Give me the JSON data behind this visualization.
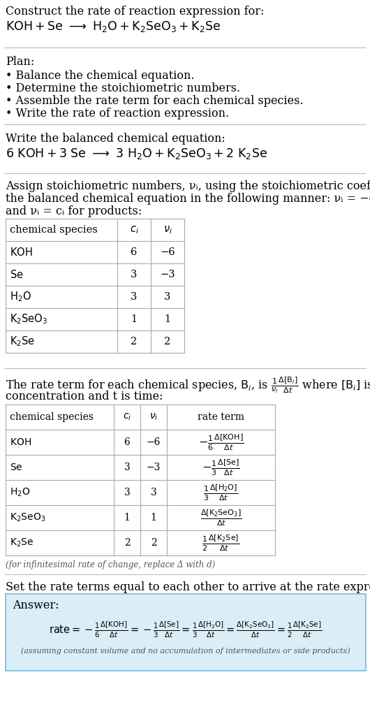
{
  "title_line1": "Construct the rate of reaction expression for:",
  "plan_header": "Plan:",
  "plan_items": [
    "• Balance the chemical equation.",
    "• Determine the stoichiometric numbers.",
    "• Assemble the rate term for each chemical species.",
    "• Write the rate of reaction expression."
  ],
  "balanced_header": "Write the balanced chemical equation:",
  "assign_text1": "Assign stoichiometric numbers, νᵢ, using the stoichiometric coefficients, cᵢ, from",
  "assign_text2": "the balanced chemical equation in the following manner: νᵢ = −cᵢ for reactants",
  "assign_text3": "and νᵢ = cᵢ for products:",
  "table1_rows": [
    [
      "KOH",
      "6",
      "−6"
    ],
    [
      "Se",
      "3",
      "−3"
    ],
    [
      "H_2O",
      "3",
      "3"
    ],
    [
      "K_2SeO_3",
      "1",
      "1"
    ],
    [
      "K_2Se",
      "2",
      "2"
    ]
  ],
  "table2_rows": [
    [
      "KOH",
      "6",
      "−6"
    ],
    [
      "Se",
      "3",
      "−3"
    ],
    [
      "H_2O",
      "3",
      "3"
    ],
    [
      "K_2SeO_3",
      "1",
      "1"
    ],
    [
      "K_2Se",
      "2",
      "2"
    ]
  ],
  "infinitesimal_note": "(for infinitesimal rate of change, replace Δ with d)",
  "set_rate_text": "Set the rate terms equal to each other to arrive at the rate expression:",
  "answer_box_color": "#daeef8",
  "answer_border_color": "#7db8d4",
  "bg_color": "#ffffff",
  "text_color": "#000000"
}
